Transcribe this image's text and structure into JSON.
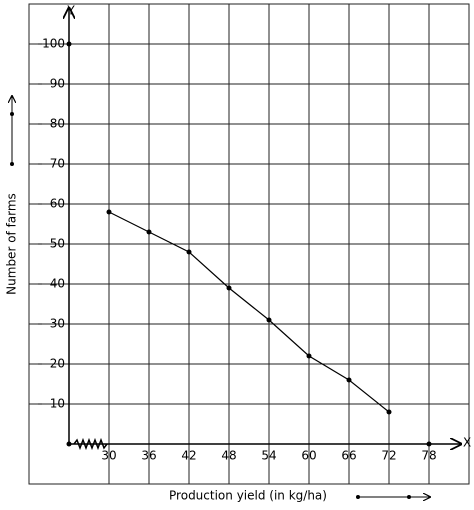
{
  "chart_data": {
    "type": "line",
    "x_label": "Production yield (in kg/ha)",
    "y_label": "Number of farms",
    "x_axis_name": "X",
    "y_axis_name": "Y",
    "x": [
      30,
      36,
      42,
      48,
      54,
      60,
      66,
      72
    ],
    "values": [
      58,
      53,
      48,
      39,
      31,
      22,
      16,
      8
    ],
    "color": "#000000",
    "xlim": [
      18,
      84
    ],
    "ylim": [
      -10,
      110
    ],
    "xticks": [
      30,
      36,
      42,
      48,
      54,
      60,
      66,
      72,
      78
    ],
    "yticks": [
      10,
      20,
      30,
      40,
      50,
      60,
      70,
      80,
      90,
      100
    ],
    "grid": true
  }
}
